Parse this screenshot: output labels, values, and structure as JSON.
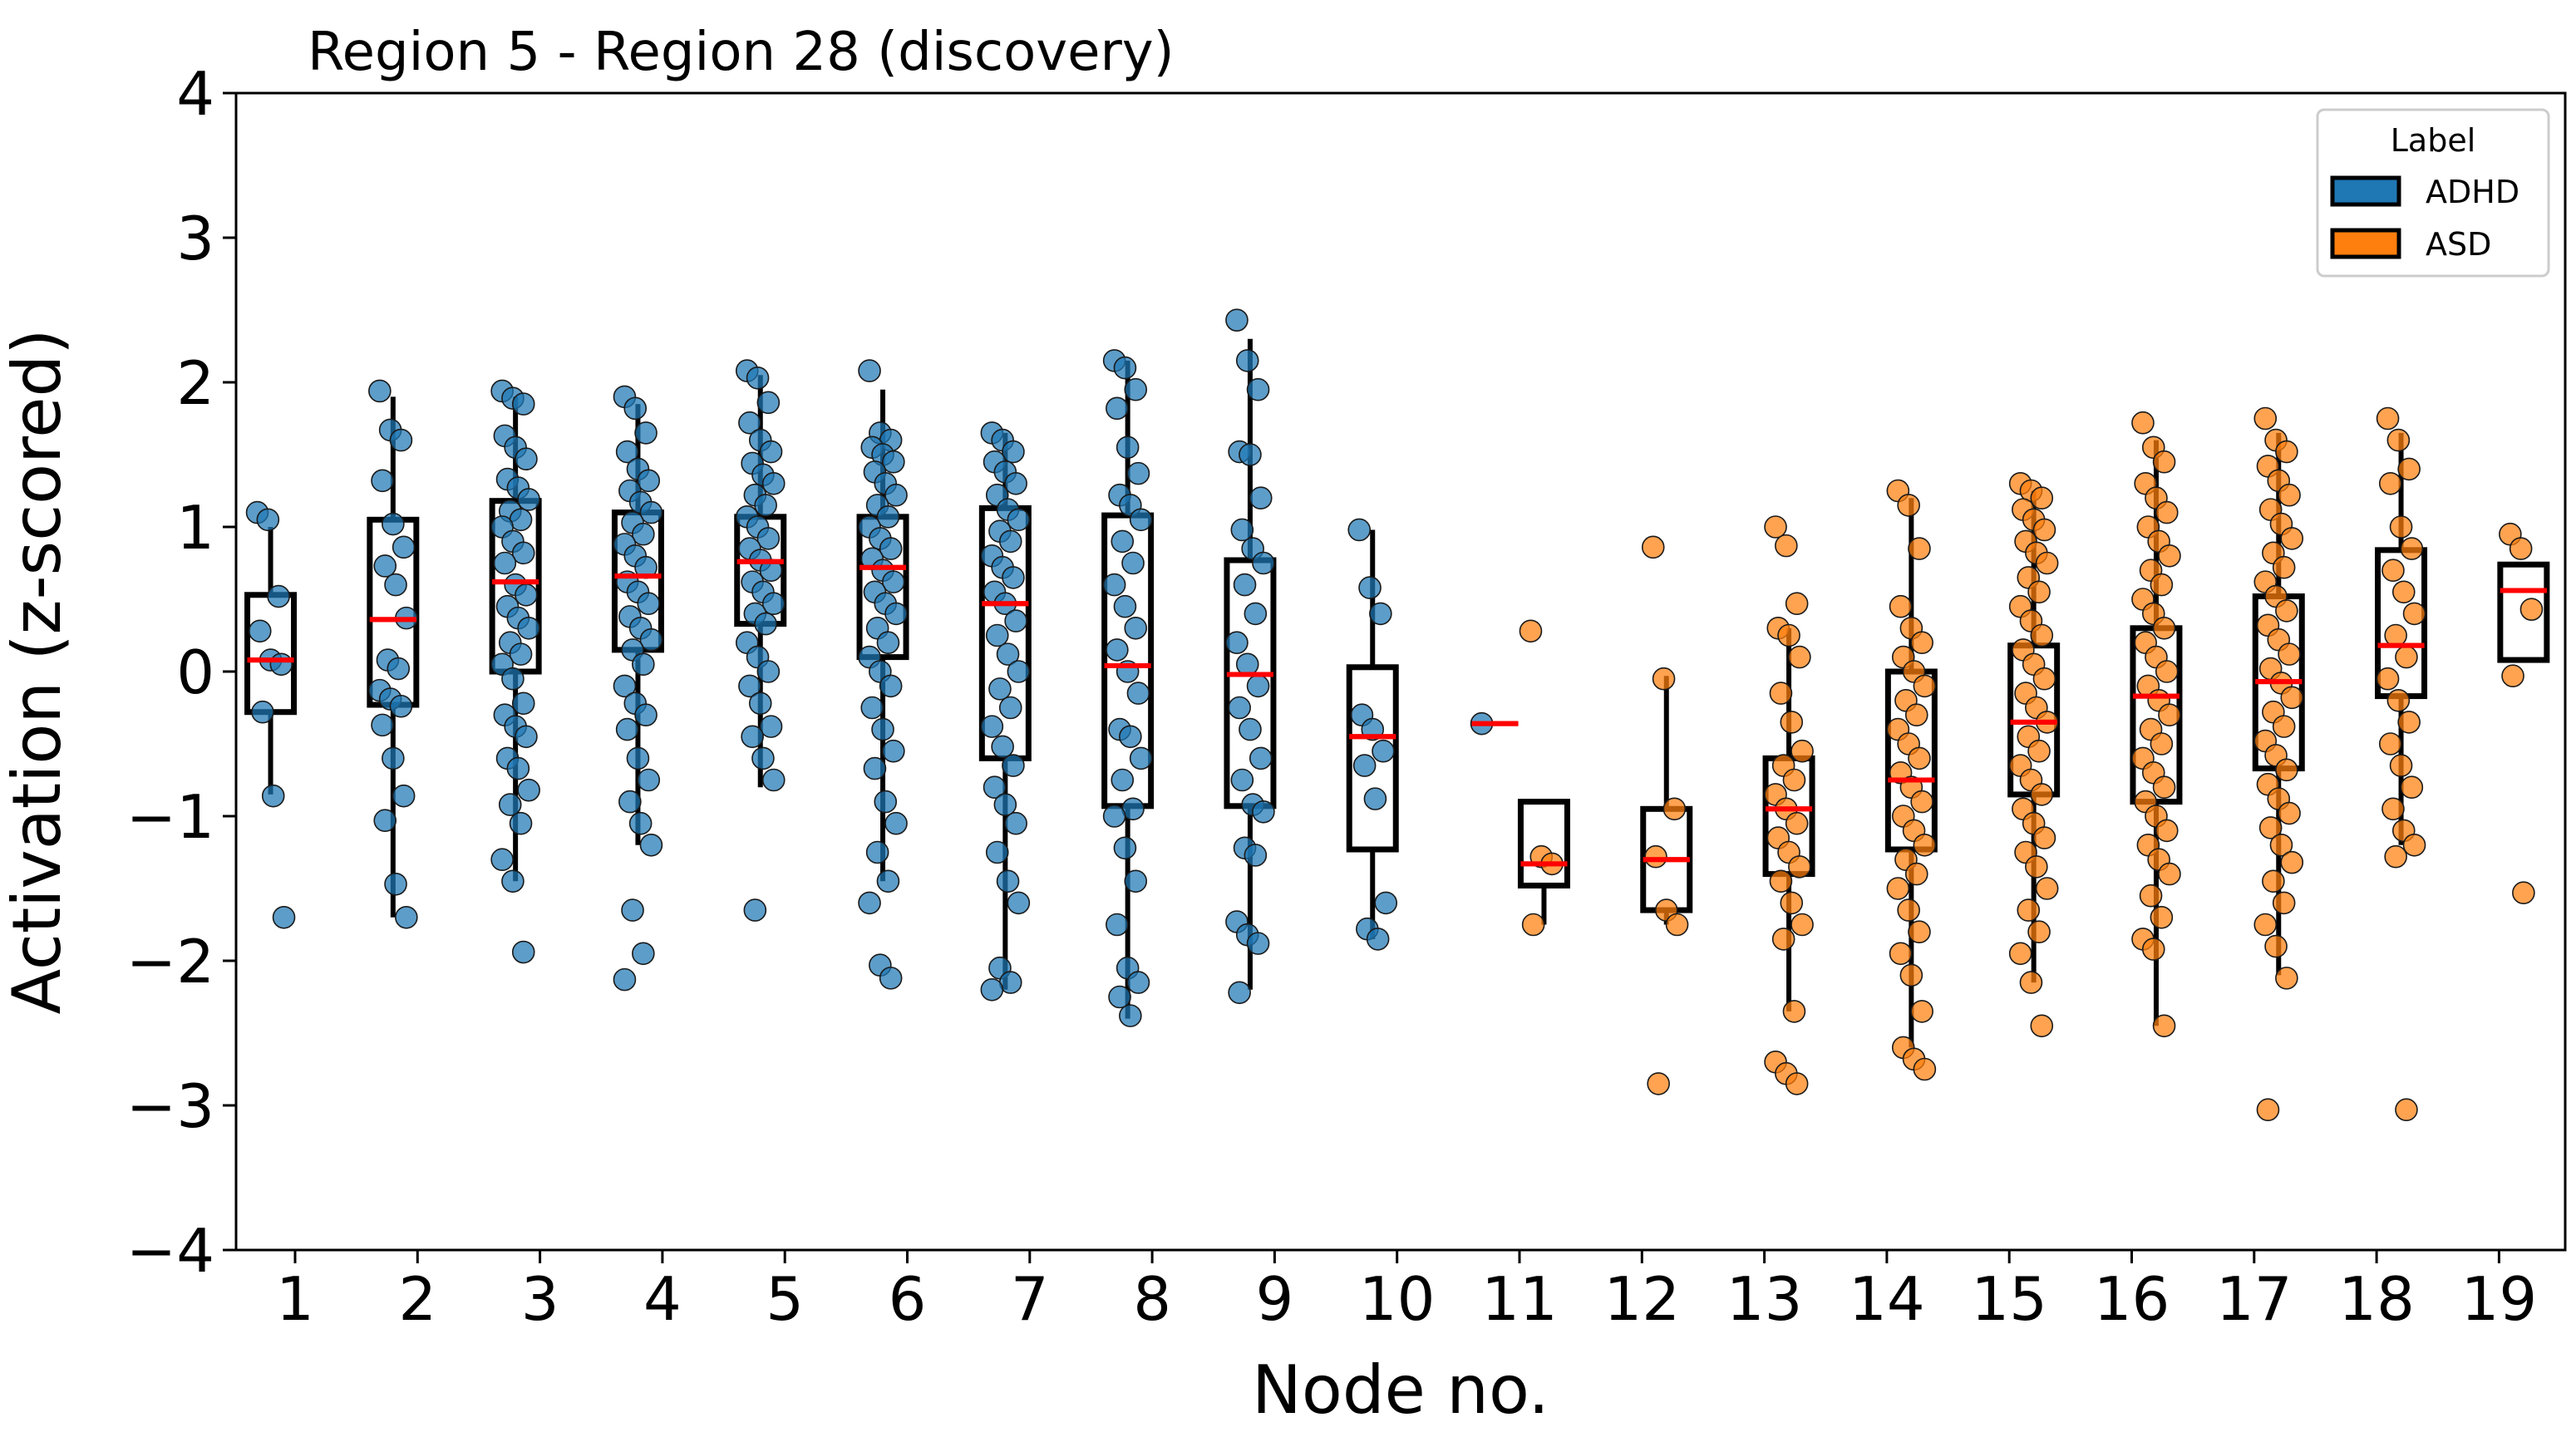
{
  "chart_data": {
    "type": "scatter",
    "subtype": "box-strip",
    "title": "Region 5 - Region 28 (discovery)",
    "xlabel": "Node no.",
    "ylabel": "Activation (z-scored)",
    "ylim": [
      -4,
      4
    ],
    "yticks": [
      "4",
      "3",
      "2",
      "1",
      "0",
      "−1",
      "−2",
      "−3",
      "−4"
    ],
    "ytick_values": [
      4,
      3,
      2,
      1,
      0,
      -1,
      -2,
      -3,
      -4
    ],
    "xticks": [
      "1",
      "2",
      "3",
      "4",
      "5",
      "6",
      "7",
      "8",
      "9",
      "10",
      "11",
      "12",
      "13",
      "14",
      "15",
      "16",
      "17",
      "18",
      "19"
    ],
    "grid": false,
    "legend": {
      "title": "Label",
      "placement": "top-right",
      "entries": [
        {
          "label": "ADHD",
          "color": "#1f77b4"
        },
        {
          "label": "ASD",
          "color": "#ff7f0e"
        }
      ]
    },
    "colors": {
      "ADHD": "#1f77b4",
      "ASD": "#ff7f0e",
      "median": "#ff0000",
      "box": "#000000"
    },
    "boxes": [
      {
        "node": 1,
        "label": "ADHD",
        "q1": -0.28,
        "median": 0.08,
        "q3": 0.53,
        "whisker_low": -0.85,
        "whisker_high": 1.0
      },
      {
        "node": 2,
        "label": "ADHD",
        "q1": -0.23,
        "median": 0.36,
        "q3": 1.05,
        "whisker_low": -1.7,
        "whisker_high": 1.9
      },
      {
        "node": 3,
        "label": "ADHD",
        "q1": 0.0,
        "median": 0.62,
        "q3": 1.18,
        "whisker_low": -1.45,
        "whisker_high": 1.9
      },
      {
        "node": 4,
        "label": "ADHD",
        "q1": 0.15,
        "median": 0.66,
        "q3": 1.1,
        "whisker_low": -1.2,
        "whisker_high": 1.85
      },
      {
        "node": 5,
        "label": "ADHD",
        "q1": 0.33,
        "median": 0.76,
        "q3": 1.07,
        "whisker_low": -0.8,
        "whisker_high": 2.05
      },
      {
        "node": 6,
        "label": "ADHD",
        "q1": 0.1,
        "median": 0.72,
        "q3": 1.07,
        "whisker_low": -1.45,
        "whisker_high": 1.95
      },
      {
        "node": 7,
        "label": "ADHD",
        "q1": -0.6,
        "median": 0.47,
        "q3": 1.13,
        "whisker_low": -2.2,
        "whisker_high": 1.65
      },
      {
        "node": 8,
        "label": "ADHD",
        "q1": -0.93,
        "median": 0.04,
        "q3": 1.08,
        "whisker_low": -2.4,
        "whisker_high": 2.15
      },
      {
        "node": 9,
        "label": "ADHD",
        "q1": -0.93,
        "median": -0.02,
        "q3": 0.77,
        "whisker_low": -2.2,
        "whisker_high": 2.3
      },
      {
        "node": 10,
        "label": "ADHD",
        "q1": -1.23,
        "median": -0.45,
        "q3": 0.03,
        "whisker_low": -1.85,
        "whisker_high": 0.98
      },
      {
        "node": 11,
        "label": "ADHD",
        "q1": -0.36,
        "median": -0.36,
        "q3": -0.36,
        "whisker_low": -0.36,
        "whisker_high": -0.36
      },
      {
        "node": 11,
        "label": "ASD",
        "q1": -1.48,
        "median": -1.33,
        "q3": -0.9,
        "whisker_low": -1.75,
        "whisker_high": -0.9
      },
      {
        "node": 12,
        "label": "ASD",
        "q1": -1.65,
        "median": -1.3,
        "q3": -0.95,
        "whisker_low": -1.75,
        "whisker_high": -0.03
      },
      {
        "node": 13,
        "label": "ASD",
        "q1": -1.4,
        "median": -0.95,
        "q3": -0.6,
        "whisker_low": -2.35,
        "whisker_high": 0.3
      },
      {
        "node": 14,
        "label": "ASD",
        "q1": -1.23,
        "median": -0.75,
        "q3": 0.0,
        "whisker_low": -2.6,
        "whisker_high": 1.2
      },
      {
        "node": 15,
        "label": "ASD",
        "q1": -0.85,
        "median": -0.35,
        "q3": 0.18,
        "whisker_low": -2.15,
        "whisker_high": 1.25
      },
      {
        "node": 16,
        "label": "ASD",
        "q1": -0.9,
        "median": -0.17,
        "q3": 0.3,
        "whisker_low": -2.45,
        "whisker_high": 1.6
      },
      {
        "node": 17,
        "label": "ASD",
        "q1": -0.67,
        "median": -0.07,
        "q3": 0.52,
        "whisker_low": -2.1,
        "whisker_high": 1.65
      },
      {
        "node": 18,
        "label": "ASD",
        "q1": -0.17,
        "median": 0.18,
        "q3": 0.84,
        "whisker_low": -1.2,
        "whisker_high": 1.65
      },
      {
        "node": 19,
        "label": "ASD",
        "q1": 0.08,
        "median": 0.56,
        "q3": 0.74,
        "whisker_low": 0.08,
        "whisker_high": 0.74
      }
    ],
    "points": [
      {
        "node": 1,
        "label": "ADHD",
        "values": [
          1.1,
          1.05,
          0.52,
          0.28,
          0.08,
          0.05,
          -0.28,
          -0.86,
          -1.7
        ]
      },
      {
        "node": 2,
        "label": "ADHD",
        "values": [
          1.94,
          1.67,
          1.6,
          1.32,
          1.02,
          0.86,
          0.73,
          0.6,
          0.37,
          0.08,
          0.02,
          -0.13,
          -0.19,
          -0.24,
          -0.37,
          -0.6,
          -0.86,
          -1.03,
          -1.47,
          -1.7
        ]
      },
      {
        "node": 3,
        "label": "ADHD",
        "values": [
          1.94,
          1.89,
          1.85,
          1.63,
          1.55,
          1.47,
          1.33,
          1.27,
          1.19,
          1.11,
          1.05,
          1.0,
          0.9,
          0.82,
          0.75,
          0.6,
          0.53,
          0.45,
          0.37,
          0.3,
          0.2,
          0.12,
          0.05,
          -0.05,
          -0.22,
          -0.3,
          -0.38,
          -0.45,
          -0.6,
          -0.67,
          -0.82,
          -0.92,
          -1.05,
          -1.3,
          -1.45,
          -1.94
        ]
      },
      {
        "node": 4,
        "label": "ADHD",
        "values": [
          1.9,
          1.82,
          1.65,
          1.52,
          1.4,
          1.32,
          1.25,
          1.17,
          1.1,
          1.03,
          0.95,
          0.88,
          0.8,
          0.72,
          0.62,
          0.55,
          0.47,
          0.38,
          0.3,
          0.22,
          0.15,
          0.05,
          -0.1,
          -0.22,
          -0.3,
          -0.4,
          -0.6,
          -0.75,
          -0.9,
          -1.05,
          -1.2,
          -1.65,
          -1.95,
          -2.13
        ]
      },
      {
        "node": 5,
        "label": "ADHD",
        "values": [
          2.08,
          2.03,
          1.86,
          1.72,
          1.6,
          1.52,
          1.44,
          1.36,
          1.3,
          1.22,
          1.15,
          1.07,
          1.0,
          0.92,
          0.85,
          0.77,
          0.7,
          0.62,
          0.55,
          0.47,
          0.4,
          0.33,
          0.2,
          0.1,
          0.0,
          -0.1,
          -0.22,
          -0.38,
          -0.45,
          -0.6,
          -0.75,
          -1.65
        ]
      },
      {
        "node": 6,
        "label": "ADHD",
        "values": [
          2.08,
          1.65,
          1.6,
          1.55,
          1.5,
          1.45,
          1.38,
          1.3,
          1.22,
          1.15,
          1.07,
          1.0,
          0.92,
          0.85,
          0.78,
          0.7,
          0.62,
          0.55,
          0.47,
          0.4,
          0.3,
          0.2,
          0.1,
          0.0,
          -0.1,
          -0.25,
          -0.4,
          -0.55,
          -0.67,
          -0.9,
          -1.05,
          -1.25,
          -1.45,
          -1.6,
          -2.03,
          -2.12
        ]
      },
      {
        "node": 7,
        "label": "ADHD",
        "values": [
          1.65,
          1.6,
          1.52,
          1.45,
          1.38,
          1.3,
          1.22,
          1.12,
          1.05,
          0.97,
          0.9,
          0.8,
          0.72,
          0.65,
          0.55,
          0.47,
          0.35,
          0.25,
          0.12,
          0.0,
          -0.12,
          -0.25,
          -0.38,
          -0.52,
          -0.65,
          -0.8,
          -0.92,
          -1.05,
          -1.25,
          -1.45,
          -1.6,
          -2.05,
          -2.15,
          -2.2
        ]
      },
      {
        "node": 8,
        "label": "ADHD",
        "values": [
          2.15,
          2.1,
          1.95,
          1.82,
          1.55,
          1.37,
          1.22,
          1.15,
          1.05,
          0.9,
          0.75,
          0.6,
          0.45,
          0.3,
          0.15,
          0.0,
          -0.15,
          -0.4,
          -0.45,
          -0.6,
          -0.75,
          -0.95,
          -1.0,
          -1.22,
          -1.45,
          -1.75,
          -2.05,
          -2.15,
          -2.25,
          -2.38
        ]
      },
      {
        "node": 9,
        "label": "ADHD",
        "values": [
          2.43,
          2.15,
          1.95,
          1.52,
          1.5,
          1.2,
          0.98,
          0.85,
          0.75,
          0.6,
          0.4,
          0.2,
          0.05,
          -0.1,
          -0.25,
          -0.4,
          -0.6,
          -0.75,
          -0.92,
          -0.97,
          -1.22,
          -1.27,
          -1.73,
          -1.82,
          -1.88,
          -2.22
        ]
      },
      {
        "node": 10,
        "label": "ADHD",
        "values": [
          0.98,
          0.58,
          0.4,
          -0.3,
          -0.4,
          -0.55,
          -0.65,
          -0.88,
          -1.6,
          -1.78,
          -1.85
        ]
      },
      {
        "node": 11,
        "label": "ADHD",
        "values": [
          -0.36
        ]
      },
      {
        "node": 11,
        "label": "ASD",
        "values": [
          0.28,
          -1.28,
          -1.33,
          -1.75
        ]
      },
      {
        "node": 12,
        "label": "ASD",
        "values": [
          0.86,
          -0.05,
          -0.95,
          -1.28,
          -1.65,
          -1.75,
          -2.85
        ]
      },
      {
        "node": 13,
        "label": "ASD",
        "values": [
          1.0,
          0.87,
          0.47,
          0.3,
          0.25,
          0.1,
          -0.15,
          -0.35,
          -0.55,
          -0.65,
          -0.75,
          -0.85,
          -0.95,
          -1.05,
          -1.15,
          -1.25,
          -1.35,
          -1.45,
          -1.6,
          -1.75,
          -1.85,
          -2.35,
          -2.7,
          -2.78,
          -2.85
        ]
      },
      {
        "node": 14,
        "label": "ASD",
        "values": [
          1.25,
          1.15,
          0.85,
          0.45,
          0.3,
          0.2,
          0.1,
          0.0,
          -0.1,
          -0.2,
          -0.3,
          -0.4,
          -0.5,
          -0.6,
          -0.7,
          -0.8,
          -0.9,
          -1.0,
          -1.1,
          -1.2,
          -1.3,
          -1.4,
          -1.5,
          -1.65,
          -1.8,
          -1.95,
          -2.1,
          -2.35,
          -2.6,
          -2.68,
          -2.75
        ]
      },
      {
        "node": 15,
        "label": "ASD",
        "values": [
          1.3,
          1.25,
          1.2,
          1.12,
          1.05,
          0.98,
          0.9,
          0.82,
          0.75,
          0.65,
          0.55,
          0.45,
          0.35,
          0.25,
          0.15,
          0.05,
          -0.05,
          -0.15,
          -0.25,
          -0.35,
          -0.45,
          -0.55,
          -0.65,
          -0.75,
          -0.85,
          -0.95,
          -1.05,
          -1.15,
          -1.25,
          -1.35,
          -1.5,
          -1.65,
          -1.8,
          -1.95,
          -2.15,
          -2.45
        ]
      },
      {
        "node": 16,
        "label": "ASD",
        "values": [
          1.72,
          1.55,
          1.45,
          1.3,
          1.2,
          1.1,
          1.0,
          0.9,
          0.8,
          0.7,
          0.6,
          0.5,
          0.4,
          0.3,
          0.2,
          0.1,
          0.0,
          -0.1,
          -0.2,
          -0.3,
          -0.4,
          -0.5,
          -0.6,
          -0.7,
          -0.8,
          -0.9,
          -1.0,
          -1.1,
          -1.2,
          -1.3,
          -1.4,
          -1.55,
          -1.7,
          -1.85,
          -1.92,
          -2.45
        ]
      },
      {
        "node": 17,
        "label": "ASD",
        "values": [
          1.75,
          1.6,
          1.52,
          1.42,
          1.32,
          1.22,
          1.12,
          1.02,
          0.92,
          0.82,
          0.72,
          0.62,
          0.52,
          0.42,
          0.32,
          0.22,
          0.12,
          0.02,
          -0.08,
          -0.18,
          -0.28,
          -0.38,
          -0.48,
          -0.58,
          -0.68,
          -0.78,
          -0.88,
          -0.98,
          -1.08,
          -1.2,
          -1.32,
          -1.45,
          -1.6,
          -1.75,
          -1.9,
          -2.12,
          -3.03
        ]
      },
      {
        "node": 18,
        "label": "ASD",
        "values": [
          1.75,
          1.6,
          1.4,
          1.3,
          1.0,
          0.85,
          0.7,
          0.55,
          0.4,
          0.25,
          0.1,
          -0.05,
          -0.2,
          -0.35,
          -0.5,
          -0.65,
          -0.8,
          -0.95,
          -1.1,
          -1.2,
          -1.28,
          -3.03
        ]
      },
      {
        "node": 19,
        "label": "ASD",
        "values": [
          0.95,
          0.85,
          0.43,
          -0.03,
          -1.53
        ]
      }
    ]
  }
}
